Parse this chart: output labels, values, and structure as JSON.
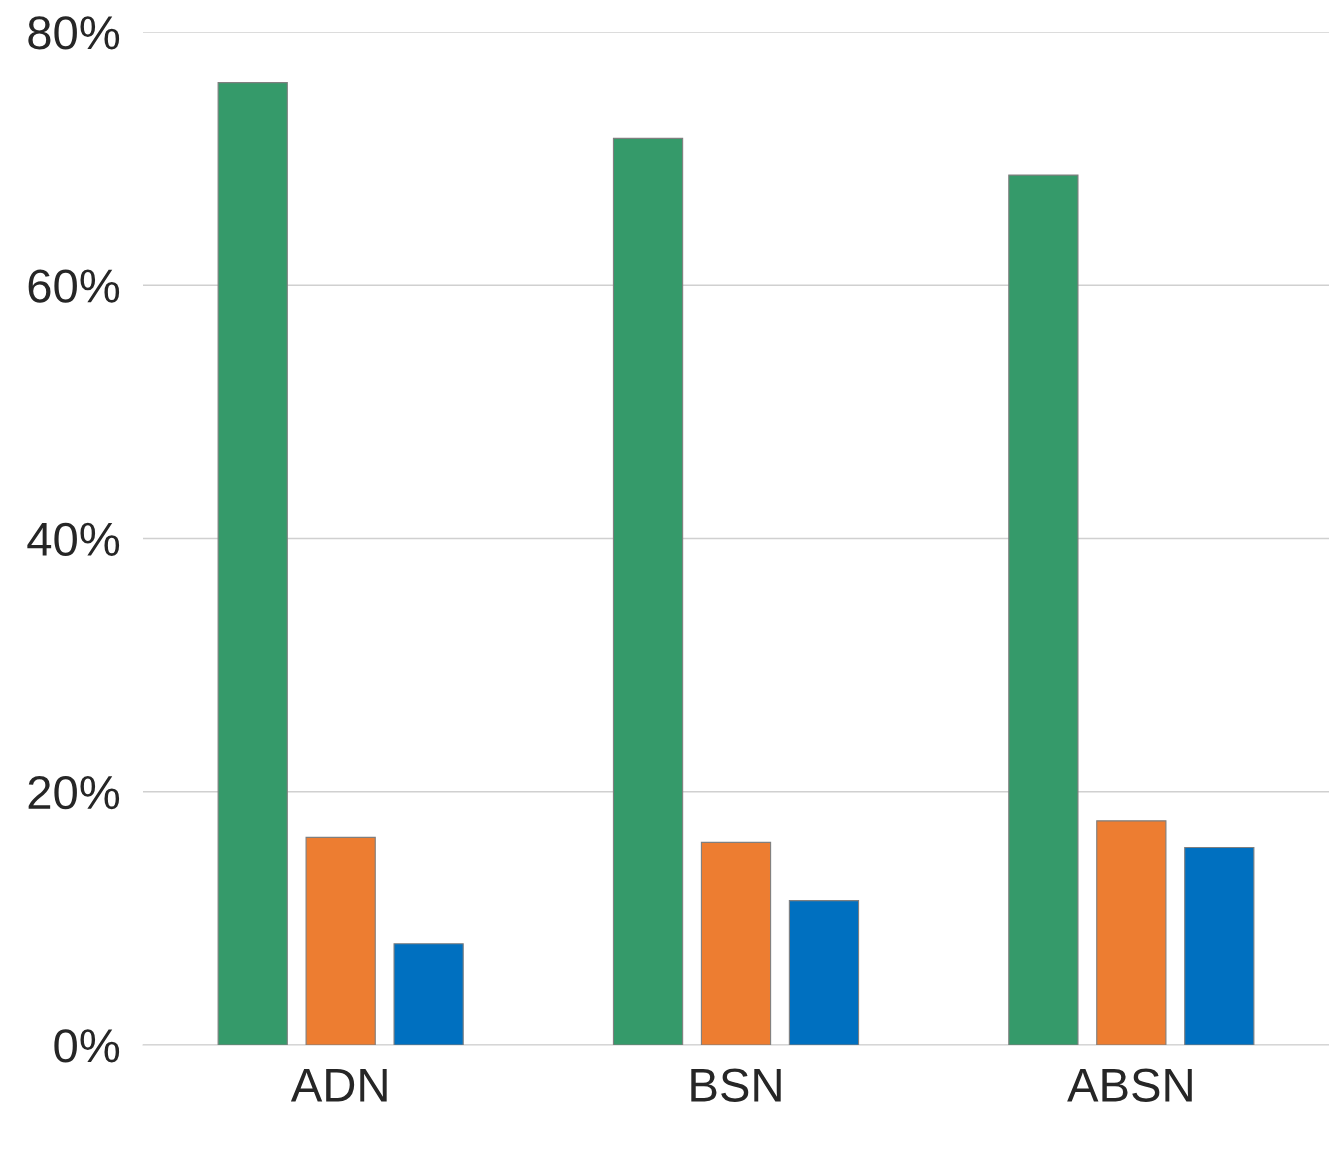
{
  "chart_data": {
    "type": "bar",
    "categories": [
      "ADN",
      "BSN",
      "ABSN"
    ],
    "series": [
      {
        "color": "#359a6a",
        "values": [
          76.0,
          71.6,
          68.7
        ]
      },
      {
        "color": "#ed7d31",
        "values": [
          16.4,
          16.0,
          17.7
        ]
      },
      {
        "color": "#0070c0",
        "values": [
          8.0,
          11.4,
          15.6
        ]
      }
    ],
    "ylim": [
      0,
      80
    ],
    "yticks": [
      {
        "value": 0,
        "label": "0%"
      },
      {
        "value": 20,
        "label": "20%"
      },
      {
        "value": 40,
        "label": "40%"
      },
      {
        "value": 60,
        "label": "60%"
      },
      {
        "value": 80,
        "label": "80%"
      }
    ],
    "grid": "y",
    "legend": false
  }
}
